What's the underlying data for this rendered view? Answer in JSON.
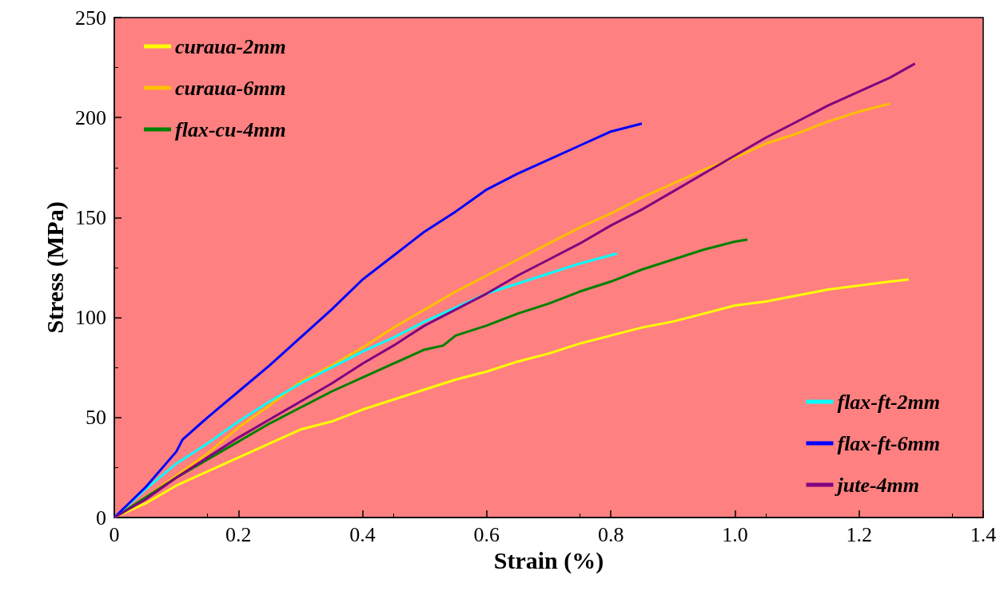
{
  "chart_data": {
    "type": "line",
    "xlabel": "Strain (%)",
    "ylabel": "Stress (MPa)",
    "xlim": [
      0,
      1.4
    ],
    "xticks": [
      0,
      0.2,
      0.4,
      0.6,
      0.8,
      {
        "value": 1,
        "label": "1.0"
      },
      1.2,
      1.4
    ],
    "ylim": [
      0,
      250
    ],
    "yticks": [
      0,
      50,
      100,
      150,
      200,
      250
    ],
    "grid": false,
    "legend": [
      "top left",
      "bottom right"
    ],
    "marker": "none",
    "line_style": "solid",
    "series": [
      {
        "name": "curaua-2mm",
        "color": "#ffff00",
        "x": [
          0,
          0.05,
          0.1,
          0.15,
          0.2,
          0.25,
          0.3,
          0.35,
          0.4,
          0.45,
          0.5,
          0.55,
          0.6,
          0.65,
          0.7,
          0.75,
          0.8,
          0.85,
          0.9,
          0.95,
          1.0,
          1.05,
          1.1,
          1.15,
          1.2,
          1.25,
          1.28
        ],
        "values": [
          0,
          7,
          16,
          23,
          30,
          37,
          44,
          48,
          54,
          59,
          64,
          69,
          73,
          78,
          82,
          87,
          91,
          95,
          98,
          102,
          106,
          108,
          111,
          114,
          116,
          118,
          119
        ]
      },
      {
        "name": "curaua-6mm",
        "color": "#ffc000",
        "x": [
          0,
          0.05,
          0.1,
          0.15,
          0.2,
          0.25,
          0.3,
          0.35,
          0.4,
          0.45,
          0.5,
          0.55,
          0.6,
          0.65,
          0.7,
          0.75,
          0.8,
          0.85,
          0.9,
          0.95,
          1.0,
          1.05,
          1.1,
          1.15,
          1.2,
          1.25
        ],
        "values": [
          0,
          10,
          21,
          32,
          45,
          56,
          68,
          76,
          85,
          95,
          104,
          113,
          121,
          129,
          137,
          145,
          152,
          160,
          167,
          174,
          180,
          187,
          192,
          198,
          203,
          207
        ]
      },
      {
        "name": "flax-cu-4mm",
        "color": "#008000",
        "x": [
          0,
          0.05,
          0.1,
          0.15,
          0.2,
          0.25,
          0.3,
          0.35,
          0.4,
          0.45,
          0.5,
          0.53,
          0.55,
          0.6,
          0.65,
          0.7,
          0.75,
          0.8,
          0.85,
          0.9,
          0.95,
          1.0,
          1.02
        ],
        "values": [
          0,
          10,
          20,
          29,
          38,
          47,
          55,
          63,
          70,
          77,
          84,
          86,
          91,
          96,
          102,
          107,
          113,
          118,
          124,
          129,
          134,
          138,
          139
        ]
      },
      {
        "name": "flax-ft-2mm",
        "color": "#00ffff",
        "x": [
          0,
          0.05,
          0.1,
          0.15,
          0.2,
          0.25,
          0.3,
          0.35,
          0.4,
          0.45,
          0.5,
          0.55,
          0.6,
          0.65,
          0.7,
          0.75,
          0.81
        ],
        "values": [
          0,
          14,
          27,
          37,
          48,
          58,
          67,
          75,
          83,
          90,
          98,
          105,
          112,
          117,
          122,
          127,
          132
        ]
      },
      {
        "name": "flax-ft-6mm",
        "color": "#0000ff",
        "x": [
          0,
          0.05,
          0.1,
          0.11,
          0.15,
          0.2,
          0.25,
          0.3,
          0.35,
          0.4,
          0.45,
          0.5,
          0.55,
          0.6,
          0.65,
          0.7,
          0.75,
          0.8,
          0.85
        ],
        "values": [
          0,
          15,
          33,
          39,
          50,
          63,
          76,
          90,
          104,
          119,
          131,
          143,
          153,
          164,
          172,
          179,
          186,
          193,
          197
        ]
      },
      {
        "name": "jute-4mm",
        "color": "#800080",
        "x": [
          0,
          0.05,
          0.1,
          0.15,
          0.2,
          0.25,
          0.3,
          0.35,
          0.4,
          0.45,
          0.5,
          0.55,
          0.6,
          0.65,
          0.7,
          0.75,
          0.8,
          0.85,
          0.9,
          0.95,
          1.0,
          1.05,
          1.1,
          1.15,
          1.2,
          1.25,
          1.29
        ],
        "values": [
          0,
          9,
          20,
          30,
          40,
          49,
          58,
          67,
          77,
          86,
          96,
          104,
          112,
          121,
          129,
          137,
          146,
          154,
          163,
          172,
          181,
          190,
          198,
          206,
          213,
          220,
          227
        ]
      }
    ]
  }
}
